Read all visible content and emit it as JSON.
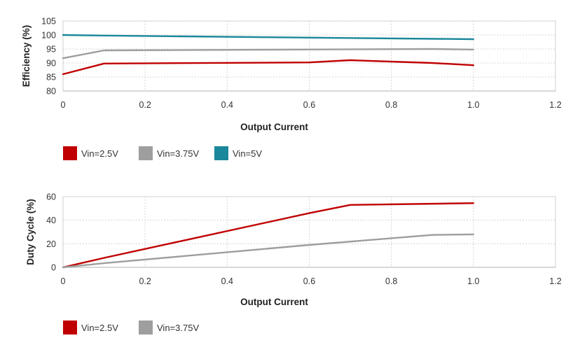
{
  "chart_data": [
    {
      "type": "line",
      "xlabel": "Output Current",
      "ylabel": "Efficiency (%)",
      "xlim": [
        0,
        1.2
      ],
      "ylim": [
        80,
        105
      ],
      "xticks": [
        "0",
        "0.2",
        "0.4",
        "0.6",
        "0.8",
        "1.0",
        "1.2"
      ],
      "yticks": [
        "80",
        "85",
        "90",
        "95",
        "100",
        "105"
      ],
      "grid": true,
      "legend_position": "bottom-left",
      "series": [
        {
          "name": "Vin=2.5V",
          "color": "#c00000",
          "x": [
            0,
            0.1,
            0.6,
            0.7,
            0.9,
            1.0
          ],
          "y": [
            86,
            89.8,
            90.2,
            91,
            90,
            89.2
          ]
        },
        {
          "name": "Vin=3.75V",
          "color": "#9e9e9e",
          "x": [
            0,
            0.1,
            0.9,
            1.0
          ],
          "y": [
            91.7,
            94.5,
            95,
            94.8
          ]
        },
        {
          "name": "Vin=5V",
          "color": "#1b879a",
          "x": [
            0,
            0.1,
            0.5,
            1.0
          ],
          "y": [
            100,
            99.8,
            99.2,
            98.5
          ]
        }
      ]
    },
    {
      "type": "line",
      "xlabel": "Output Current",
      "ylabel": "Duty Cycle (%)",
      "xlim": [
        0,
        1.2
      ],
      "ylim": [
        0,
        60
      ],
      "xticks": [
        "0",
        "0.2",
        "0.4",
        "0.6",
        "0.8",
        "1.0",
        "1.2"
      ],
      "yticks": [
        "0",
        "20",
        "40",
        "60"
      ],
      "grid": true,
      "legend_position": "bottom-left",
      "series": [
        {
          "name": "Vin=2.5V",
          "color": "#c00000",
          "x": [
            0,
            0.1,
            0.6,
            0.7,
            1.0
          ],
          "y": [
            0,
            8,
            46,
            53,
            54.5
          ]
        },
        {
          "name": "Vin=3.75V",
          "color": "#9e9e9e",
          "x": [
            0,
            0.1,
            0.6,
            0.9,
            1.0
          ],
          "y": [
            0,
            3.5,
            19,
            27.5,
            28
          ]
        }
      ]
    }
  ]
}
